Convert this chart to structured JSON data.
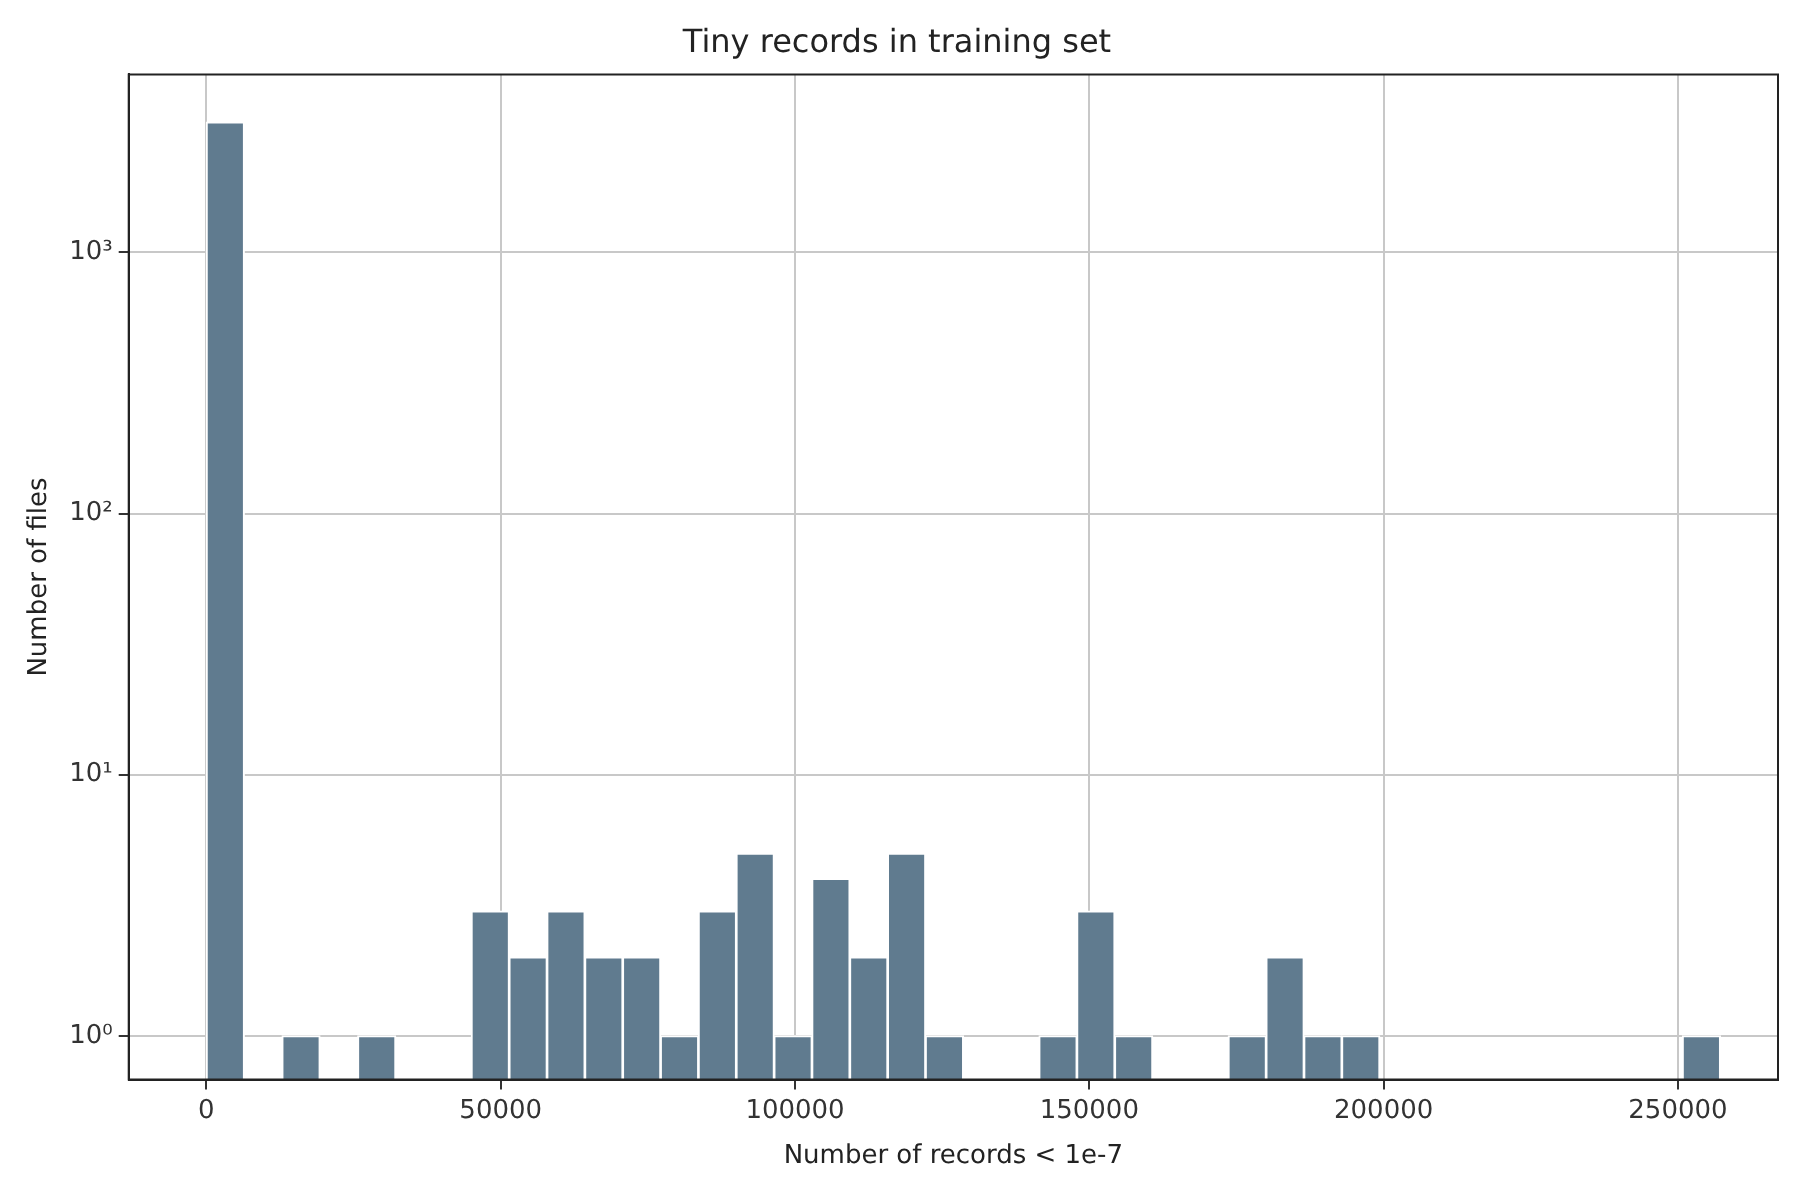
{
  "chart_data": {
    "type": "histogram",
    "title": "Tiny records in training set",
    "xlabel": "Number of records < 1e-7",
    "ylabel": "Number of files",
    "bins": [
      0,
      6430,
      12860,
      19290,
      25720,
      32150,
      38580,
      45010,
      51440,
      57870,
      64300,
      70730,
      77160,
      83590,
      90020,
      96450,
      102880,
      109310,
      115740,
      122170,
      128600,
      135030,
      141460,
      147890,
      154320,
      160750,
      167180,
      173610,
      180040,
      186470,
      192900,
      199330,
      205760,
      212190,
      218620,
      225050,
      231480,
      237910,
      244340,
      250770,
      257200
    ],
    "values": [
      3150,
      null,
      1,
      null,
      1,
      null,
      null,
      3,
      2,
      3,
      2,
      2,
      1,
      3,
      5,
      1,
      4,
      2,
      5,
      1,
      null,
      null,
      1,
      3,
      1,
      null,
      null,
      1,
      2,
      1,
      1,
      null,
      null,
      null,
      null,
      null,
      null,
      null,
      null,
      1
    ],
    "color": "#607b8f",
    "log": "y",
    "grid": true,
    "xlim": [
      -13200,
      267000
    ],
    "xticks": [
      0,
      50000,
      100000,
      150000,
      200000,
      250000
    ],
    "ylim": [
      0.68,
      4800
    ],
    "yticks": [
      {
        "value": 1,
        "label": "10⁰"
      },
      {
        "value": 10,
        "label": "10¹"
      },
      {
        "value": 100,
        "label": "10²"
      },
      {
        "value": 1000,
        "label": "10³"
      }
    ]
  }
}
